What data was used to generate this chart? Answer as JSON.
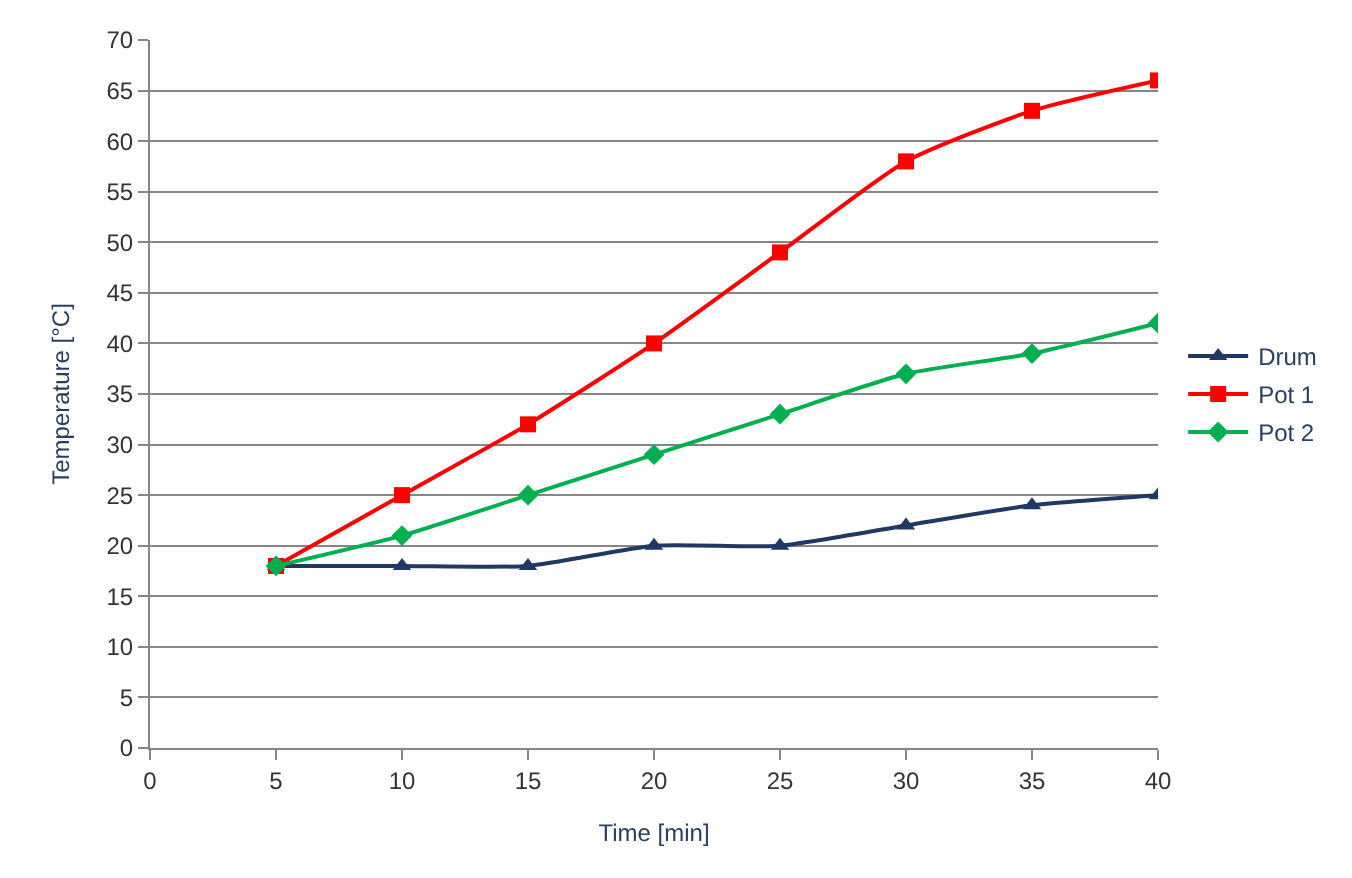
{
  "chart_data": {
    "type": "line",
    "xlabel": "Time [min]",
    "ylabel": "Temperature [°C]",
    "x": [
      5,
      10,
      15,
      20,
      25,
      30,
      35,
      40
    ],
    "series": [
      {
        "name": "Drum",
        "color": "#1f3864",
        "marker": "triangle",
        "values": [
          18,
          18,
          18,
          20,
          20,
          22,
          24,
          25
        ]
      },
      {
        "name": "Pot 1",
        "color": "#ff0000",
        "marker": "square",
        "values": [
          18,
          25,
          32,
          40,
          49,
          58,
          63,
          66
        ]
      },
      {
        "name": "Pot 2",
        "color": "#00b050",
        "marker": "diamond",
        "values": [
          18,
          21,
          25,
          29,
          33,
          37,
          39,
          42
        ]
      }
    ],
    "xlim": [
      0,
      40
    ],
    "xticks": [
      0,
      5,
      10,
      15,
      20,
      25,
      30,
      35,
      40
    ],
    "ylim": [
      0,
      70
    ],
    "yticks": [
      0,
      5,
      10,
      15,
      20,
      25,
      30,
      35,
      40,
      45,
      50,
      55,
      60,
      65,
      70
    ],
    "grid": "y",
    "legend": "right",
    "line_style": "solid"
  }
}
